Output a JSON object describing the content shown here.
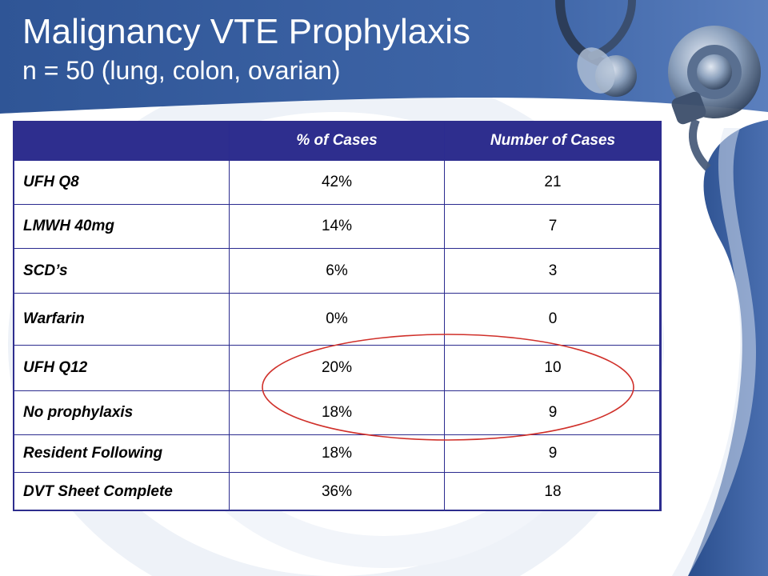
{
  "slide": {
    "title": "Malignancy VTE Prophylaxis",
    "subtitle": "n = 50 (lung, colon, ovarian)"
  },
  "table": {
    "headers": [
      "",
      "% of Cases",
      "Number of Cases"
    ],
    "rows": [
      {
        "label": "UFH Q8",
        "percent": "42%",
        "count": "21"
      },
      {
        "label": "LMWH 40mg",
        "percent": "14%",
        "count": "7"
      },
      {
        "label": "SCD’s",
        "percent": "6%",
        "count": "3"
      },
      {
        "label": "Warfarin",
        "percent": "0%",
        "count": "0"
      },
      {
        "label": "UFH Q12",
        "percent": "20%",
        "count": "10"
      },
      {
        "label": "No prophylaxis",
        "percent": "18%",
        "count": "9"
      },
      {
        "label": "Resident Following",
        "percent": "18%",
        "count": "9"
      },
      {
        "label": "DVT Sheet Complete",
        "percent": "36%",
        "count": "18"
      }
    ]
  },
  "colors": {
    "header_blue": "#2e4f8f",
    "table_header": "#2e2e8e",
    "highlight_circle": "#d0302a"
  },
  "decor": {
    "background_image": "stethoscope-graphic",
    "annotation": "red-ellipse-highlight"
  }
}
